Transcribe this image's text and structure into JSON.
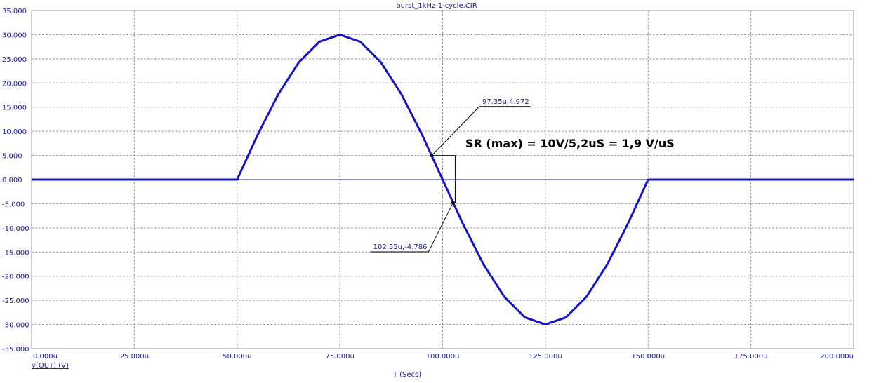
{
  "chart_data": {
    "type": "line",
    "title": "burst_1kHz-1-cycle.CIR",
    "xlabel": "T (Secs)",
    "x": [
      0,
      50,
      55,
      60,
      65,
      70,
      75,
      80,
      85,
      90,
      95,
      100,
      105,
      110,
      115,
      120,
      125,
      130,
      135,
      140,
      145,
      150,
      200
    ],
    "series": [
      {
        "name": "v(OUT) (V)",
        "color": "#1414c8",
        "values": [
          0,
          0,
          9.27,
          17.63,
          24.27,
          28.53,
          30,
          28.53,
          24.27,
          17.63,
          9.27,
          0,
          -9.27,
          -17.63,
          -24.27,
          -28.53,
          -30,
          -28.53,
          -24.27,
          -17.63,
          -9.27,
          0,
          0
        ]
      }
    ],
    "xlim": [
      0,
      200
    ],
    "ylim": [
      -35,
      35
    ],
    "xticks": [
      {
        "value": 0,
        "label": "0.000u"
      },
      {
        "value": 25,
        "label": "25.000u"
      },
      {
        "value": 50,
        "label": "50.000u"
      },
      {
        "value": 75,
        "label": "75.000u"
      },
      {
        "value": 100,
        "label": "100.000u"
      },
      {
        "value": 125,
        "label": "125.000u"
      },
      {
        "value": 150,
        "label": "150.000u"
      },
      {
        "value": 175,
        "label": "175.000u"
      },
      {
        "value": 200,
        "label": "200.000u"
      }
    ],
    "yticks": [
      {
        "value": -35,
        "label": "-35.000"
      },
      {
        "value": -30,
        "label": "-30.000"
      },
      {
        "value": -25,
        "label": "-25.000"
      },
      {
        "value": -20,
        "label": "-20.000"
      },
      {
        "value": -15,
        "label": "-15.000"
      },
      {
        "value": -10,
        "label": "-10.000"
      },
      {
        "value": -5,
        "label": "-5.000"
      },
      {
        "value": 0,
        "label": "0.000"
      },
      {
        "value": 5,
        "label": "5.000"
      },
      {
        "value": 10,
        "label": "10.000"
      },
      {
        "value": 15,
        "label": "15.000"
      },
      {
        "value": 20,
        "label": "20.000"
      },
      {
        "value": 25,
        "label": "25.000"
      },
      {
        "value": 30,
        "label": "30.000"
      },
      {
        "value": 35,
        "label": "35.000"
      }
    ],
    "grid": true,
    "markers": [
      {
        "x": 97.35,
        "y": 4.972,
        "label": "97.35u,4.972"
      },
      {
        "x": 102.55,
        "y": -4.786,
        "label": "102.55u,-4.786"
      }
    ],
    "annotation": "SR (max) = 10V/5,2uS = 1,9 V/uS"
  }
}
